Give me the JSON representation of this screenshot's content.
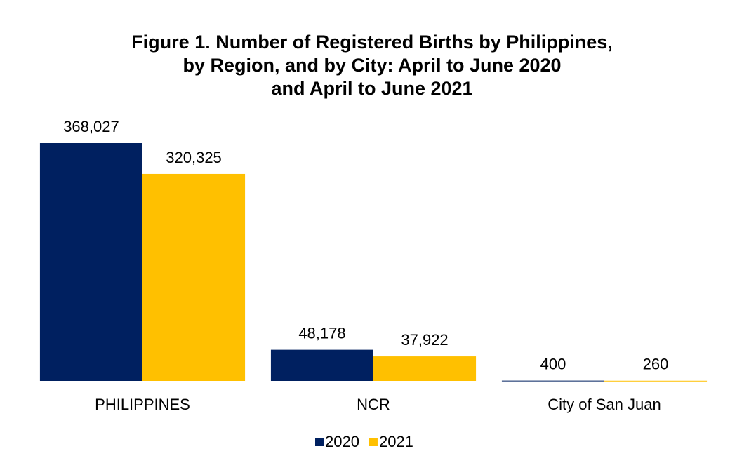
{
  "chart_data": {
    "type": "bar",
    "title": [
      "Figure 1. Number of Registered Births by Philippines,",
      "by Region, and by City: April to June 2020",
      "and April to June 2021"
    ],
    "categories": [
      "PHILIPPINES",
      "NCR",
      "City of San Juan"
    ],
    "series": [
      {
        "name": "2020",
        "color": "#002060",
        "values": [
          368027,
          48178,
          400
        ],
        "value_labels": [
          "368,027",
          "48,178",
          "400"
        ]
      },
      {
        "name": "2021",
        "color": "#FFC000",
        "values": [
          320325,
          37922,
          260
        ],
        "value_labels": [
          "320,325",
          "37,922",
          "260"
        ]
      }
    ],
    "legend": "bottom"
  }
}
